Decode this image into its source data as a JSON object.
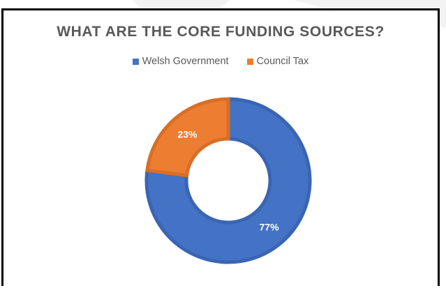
{
  "chart_data": {
    "type": "pie",
    "title": "WHAT ARE THE CORE FUNDING SOURCES?",
    "categories": [
      "Welsh Government",
      "Council Tax"
    ],
    "values": [
      77,
      23
    ],
    "data_labels": [
      "77%",
      "23%"
    ],
    "colors": [
      "#4472C4",
      "#ED7D31"
    ],
    "legend_position": "top",
    "variant": "doughnut"
  }
}
